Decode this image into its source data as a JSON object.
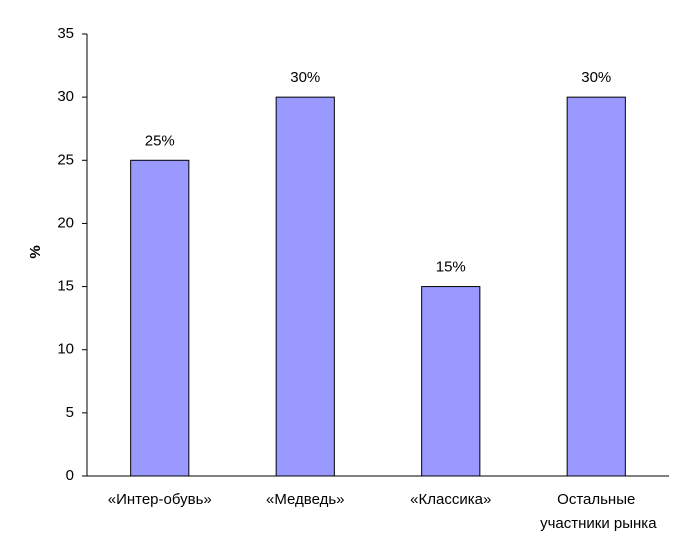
{
  "chart_data": {
    "type": "bar",
    "y_label": "%",
    "categories": [
      "«Интер-обувь»",
      "«Медведь»",
      "«Классика»",
      "Остальные участники рынка"
    ],
    "values": [
      25,
      30,
      15,
      30
    ],
    "value_labels": [
      "25%",
      "30%",
      "15%",
      "30%"
    ],
    "color": "#9999ff",
    "ylim": [
      0,
      35
    ],
    "yticks": [
      0,
      5,
      10,
      15,
      20,
      25,
      30,
      35
    ],
    "grid": false
  }
}
